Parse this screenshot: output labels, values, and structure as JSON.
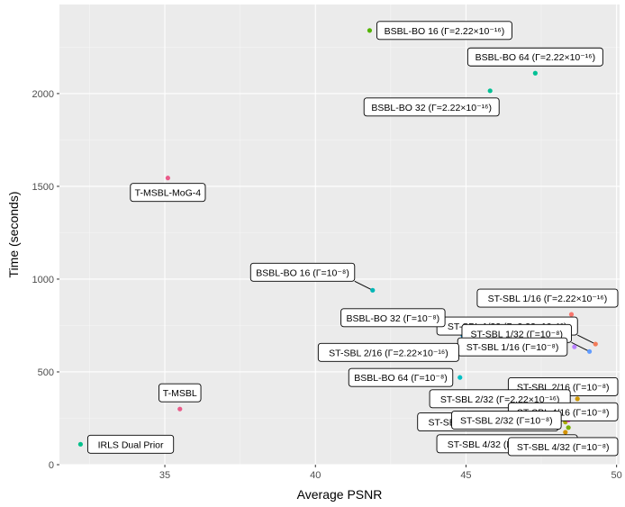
{
  "chart_data": {
    "type": "scatter",
    "title": "",
    "xlabel": "Average PSNR",
    "ylabel": "Time (seconds)",
    "xlim": [
      31.5,
      50.1
    ],
    "ylim": [
      0,
      2480
    ],
    "x_ticks": [
      35,
      40,
      45,
      50
    ],
    "y_ticks": [
      0,
      500,
      1000,
      1500,
      2000
    ],
    "grid": true,
    "points": [
      {
        "label": "BSBL-BO 16 (Γ=2.22×10⁻¹⁶)",
        "x": 41.8,
        "y": 2340,
        "color": "#53b400",
        "label_pos": "right"
      },
      {
        "label": "BSBL-BO 64 (Γ=2.22×10⁻¹⁶)",
        "x": 47.3,
        "y": 2110,
        "color": "#00c094",
        "label_pos": "above"
      },
      {
        "label": "BSBL-BO 32 (Γ=2.22×10⁻¹⁶)",
        "x": 45.8,
        "y": 2015,
        "color": "#00c094",
        "label_pos": "below-left"
      },
      {
        "label": "T-MSBL-MoG-4",
        "x": 35.1,
        "y": 1545,
        "color": "#ea5b8a",
        "label_pos": "below"
      },
      {
        "label": "BSBL-BO 16 (Γ=10⁻⁸)",
        "x": 41.9,
        "y": 940,
        "color": "#00b6b6",
        "label_pos": "upper-left"
      },
      {
        "label": "ST-SBL 1/32 (Γ=2.22×10⁻¹⁶)",
        "x": 49.3,
        "y": 650,
        "color": "#f37b59",
        "label_pos": "upper-left"
      },
      {
        "label": "ST-SBL 1/16 (Γ=2.22×10⁻¹⁶)",
        "x": 48.5,
        "y": 810,
        "color": "#f8766d",
        "label_pos": "above"
      },
      {
        "label": "ST-SBL 1/32 (Γ=10⁻⁸)",
        "x": 49.1,
        "y": 610,
        "color": "#619cff",
        "label_pos": "upper-left"
      },
      {
        "label": "BSBL-BO 32 (Γ=10⁻⁸)",
        "x": 44.9,
        "y": 695,
        "color": "#00a9ff",
        "label_pos": "upper-left"
      },
      {
        "label": "ST-SBL 1/16 (Γ=10⁻⁸)",
        "x": 48.6,
        "y": 635,
        "color": "#b983ff",
        "label_pos": "left"
      },
      {
        "label": "ST-SBL 2/16 (Γ=2.22×10⁻¹⁶)",
        "x": 45.0,
        "y": 605,
        "color": "#00b8e7",
        "label_pos": "left"
      },
      {
        "label": "ST-SBL 2/16 (Γ=10⁻⁸)",
        "x": 48.3,
        "y": 420,
        "color": "#e76bf3",
        "label_pos": "right"
      },
      {
        "label": "BSBL-BO 64 (Γ=10⁻⁸)",
        "x": 44.8,
        "y": 470,
        "color": "#00bfc4",
        "label_pos": "left"
      },
      {
        "label": "ST-SBL 2/32 (Γ=2.22×10⁻¹⁶)",
        "x": 48.7,
        "y": 355,
        "color": "#cd9600",
        "label_pos": "left"
      },
      {
        "label": "T-MSBL",
        "x": 35.5,
        "y": 300,
        "color": "#ea5b8a",
        "label_pos": "above"
      },
      {
        "label": "ST-SBL 4/16 (Γ=10⁻⁸)",
        "x": 48.9,
        "y": 285,
        "color": "#ff61c3",
        "label_pos": "right"
      },
      {
        "label": "ST-SBL 4/16 (Γ=2.22×10⁻¹⁶)",
        "x": 48.3,
        "y": 230,
        "color": "#abab00",
        "label_pos": "left"
      },
      {
        "label": "ST-SBL 2/32 (Γ=10⁻⁸)",
        "x": 48.4,
        "y": 240,
        "color": "#fd61d1",
        "label_pos": "left"
      },
      {
        "label": "IRLS Dual Prior",
        "x": 32.2,
        "y": 110,
        "color": "#00c08b",
        "label_pos": "right"
      },
      {
        "label": "ST-SBL 4/32 (Γ=2.22×10⁻¹⁶)",
        "x": 48.4,
        "y": 200,
        "color": "#7cae00",
        "label_pos": "below-left"
      },
      {
        "label": "ST-SBL 4/32 (Γ=10⁻⁸)",
        "x": 48.3,
        "y": 175,
        "color": "#d39200",
        "label_pos": "below"
      }
    ]
  }
}
